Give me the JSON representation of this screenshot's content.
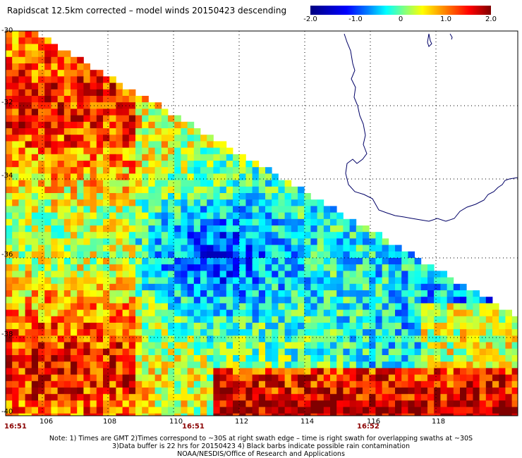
{
  "title": "Rapidscat 12.5km corrected – model winds 20150423 descending",
  "colorbar": {
    "ticks": [
      "-2.0",
      "-1.0",
      "0",
      "1.0",
      "2.0"
    ],
    "range": [
      -2.0,
      2.0
    ],
    "colors": [
      "#000080",
      "#0000ff",
      "#0080ff",
      "#00ffff",
      "#80ff80",
      "#ffff00",
      "#ff8000",
      "#ff0000",
      "#800000"
    ]
  },
  "axes": {
    "x_ticks": [
      "106",
      "108",
      "110",
      "112",
      "114",
      "116",
      "118"
    ],
    "y_ticks": [
      "-30",
      "-32",
      "-34",
      "-36",
      "-38",
      "-40"
    ]
  },
  "times": [
    "16:51",
    "16:51",
    "16:52"
  ],
  "notes": [
    "Note: 1) Times are GMT 2)Times correspond to ~30S at right swath edge – time is right swath for overlapping swaths at ~30S",
    "3)Data buffer is 22 hrs for 20150423 4) Black barbs indicate possible rain contamination",
    "NOAA/NESDIS/Office of Research and Applications"
  ],
  "style": {
    "coast_color": "#000066",
    "grid_color": "#000000"
  }
}
